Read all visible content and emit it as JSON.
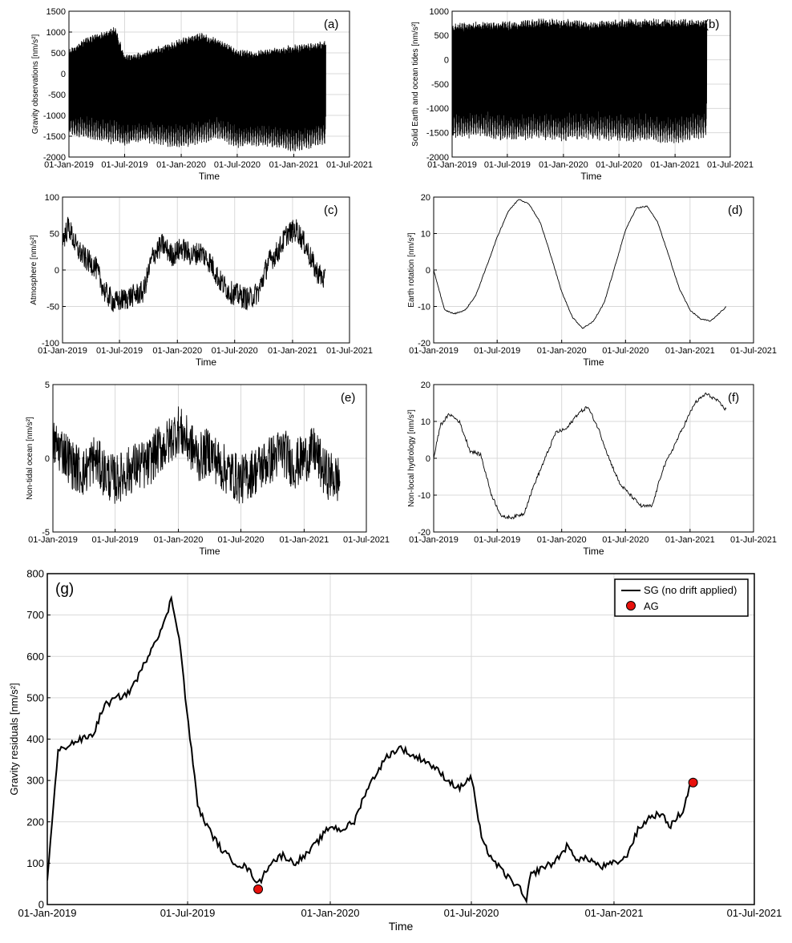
{
  "chart_data": [
    {
      "id": "a",
      "type": "line",
      "panel_label": "(a)",
      "title": "",
      "xlabel": "Time",
      "ylabel": "Gravity observations [nm/s²]",
      "x_ticks": [
        "01-Jan-2019",
        "01-Jul-2019",
        "01-Jan-2020",
        "01-Jul-2020",
        "01-Jan-2021",
        "01-Jul-2021"
      ],
      "xlim": [
        "2019-01-01",
        "2021-07-01"
      ],
      "ylim": [
        -2000,
        1500
      ],
      "y_ticks": [
        -2000,
        -1500,
        -1000,
        -500,
        0,
        500,
        1000,
        1500
      ],
      "grid": true,
      "series": [
        {
          "date": [
            "2019-01-01",
            "2019-03-01",
            "2019-05-01",
            "2019-06-01",
            "2019-07-01",
            "2019-09-01",
            "2019-11-01",
            "2020-01-01",
            "2020-03-01",
            "2020-05-01",
            "2020-07-01",
            "2020-09-01",
            "2020-11-01",
            "2021-01-01",
            "2021-03-01",
            "2021-04-15"
          ],
          "envelope_upper": [
            600,
            900,
            1050,
            1150,
            450,
            550,
            700,
            850,
            1000,
            850,
            600,
            550,
            650,
            700,
            750,
            800
          ],
          "envelope_lower": [
            -1500,
            -1600,
            -1700,
            -1700,
            -1750,
            -1650,
            -1750,
            -1800,
            -1700,
            -1600,
            -1800,
            -1750,
            -1800,
            -1900,
            -1800,
            -1700
          ]
        }
      ]
    },
    {
      "id": "b",
      "type": "line",
      "panel_label": "(b)",
      "title": "",
      "xlabel": "Time",
      "ylabel": "Solid Earth and ocean tides [nm/s²]",
      "x_ticks": [
        "01-Jan-2019",
        "01-Jul-2019",
        "01-Jan-2020",
        "01-Jul-2020",
        "01-Jan-2021",
        "01-Jul-2021"
      ],
      "xlim": [
        "2019-01-01",
        "2021-07-01"
      ],
      "ylim": [
        -2000,
        1000
      ],
      "y_ticks": [
        -2000,
        -1500,
        -1000,
        -500,
        0,
        500,
        1000
      ],
      "grid": true,
      "series": [
        {
          "date": [
            "2019-01-01",
            "2019-04-01",
            "2019-07-01",
            "2019-10-01",
            "2020-01-01",
            "2020-04-01",
            "2020-07-01",
            "2020-10-01",
            "2021-01-01",
            "2021-04-15"
          ],
          "envelope_upper": [
            750,
            800,
            800,
            850,
            850,
            800,
            850,
            850,
            850,
            850
          ],
          "envelope_lower": [
            -1650,
            -1600,
            -1700,
            -1650,
            -1700,
            -1650,
            -1700,
            -1700,
            -1750,
            -1600
          ]
        }
      ]
    },
    {
      "id": "c",
      "type": "line",
      "panel_label": "(c)",
      "title": "",
      "xlabel": "Time",
      "ylabel": "Atmosphere [nm/s²]",
      "x_ticks": [
        "01-Jan-2019",
        "01-Jul-2019",
        "01-Jan-2020",
        "01-Jul-2020",
        "01-Jan-2021",
        "01-Jul-2021"
      ],
      "xlim": [
        "2019-01-01",
        "2021-07-01"
      ],
      "ylim": [
        -100,
        100
      ],
      "y_ticks": [
        -100,
        -50,
        0,
        50,
        100
      ],
      "grid": true,
      "series": [
        {
          "date": [
            "2019-01-01",
            "2019-01-20",
            "2019-02-15",
            "2019-03-15",
            "2019-04-15",
            "2019-05-15",
            "2019-06-15",
            "2019-07-15",
            "2019-08-15",
            "2019-09-15",
            "2019-10-15",
            "2019-11-15",
            "2019-12-15",
            "2020-01-15",
            "2020-02-15",
            "2020-03-15",
            "2020-04-15",
            "2020-05-15",
            "2020-06-15",
            "2020-07-15",
            "2020-08-15",
            "2020-09-15",
            "2020-10-15",
            "2020-11-15",
            "2020-12-15",
            "2021-01-15",
            "2021-02-15",
            "2021-03-15",
            "2021-04-15"
          ],
          "y": [
            40,
            60,
            30,
            15,
            5,
            -30,
            -45,
            -40,
            -35,
            -30,
            20,
            35,
            20,
            30,
            20,
            25,
            10,
            -15,
            -30,
            -35,
            -40,
            -30,
            10,
            25,
            50,
            55,
            30,
            0,
            -15
          ]
        }
      ]
    },
    {
      "id": "d",
      "type": "line",
      "panel_label": "(d)",
      "title": "",
      "xlabel": "Time",
      "ylabel": "Earth rotation [nm/s²]",
      "x_ticks": [
        "01-Jan-2019",
        "01-Jul-2019",
        "01-Jan-2020",
        "01-Jul-2020",
        "01-Jan-2021",
        "01-Jul-2021"
      ],
      "xlim": [
        "2019-01-01",
        "2021-07-01"
      ],
      "ylim": [
        -20,
        20
      ],
      "y_ticks": [
        -20,
        -10,
        0,
        10,
        20
      ],
      "grid": true,
      "series": [
        {
          "date": [
            "2019-01-01",
            "2019-02-01",
            "2019-03-01",
            "2019-04-01",
            "2019-05-01",
            "2019-06-01",
            "2019-07-01",
            "2019-08-01",
            "2019-09-01",
            "2019-10-01",
            "2019-11-01",
            "2019-12-01",
            "2020-01-01",
            "2020-02-01",
            "2020-03-01",
            "2020-04-01",
            "2020-05-01",
            "2020-06-01",
            "2020-07-01",
            "2020-08-01",
            "2020-09-01",
            "2020-10-01",
            "2020-11-01",
            "2020-12-01",
            "2021-01-01",
            "2021-02-01",
            "2021-03-01",
            "2021-04-15"
          ],
          "y": [
            0,
            -11,
            -12,
            -11,
            -7,
            1,
            9,
            16,
            19.5,
            18,
            13,
            4,
            -6,
            -13,
            -16,
            -14,
            -9,
            1,
            11,
            17,
            17.5,
            13,
            4,
            -5,
            -11,
            -13.5,
            -14,
            -10
          ]
        }
      ]
    },
    {
      "id": "e",
      "type": "line",
      "panel_label": "(e)",
      "title": "",
      "xlabel": "Time",
      "ylabel": "Non-tidal ocean [nm/s²]",
      "x_ticks": [
        "01-Jan-2019",
        "01-Jul-2019",
        "01-Jan-2020",
        "01-Jul-2020",
        "01-Jan-2021",
        "01-Jul-2021"
      ],
      "xlim": [
        "2019-01-01",
        "2021-07-01"
      ],
      "ylim": [
        -5,
        5
      ],
      "y_ticks": [
        -5,
        0,
        5
      ],
      "grid": true,
      "series": [
        {
          "date": [
            "2019-01-01",
            "2019-02-01",
            "2019-03-01",
            "2019-04-01",
            "2019-05-01",
            "2019-06-01",
            "2019-07-01",
            "2019-08-01",
            "2019-09-01",
            "2019-10-01",
            "2019-11-01",
            "2019-12-01",
            "2020-01-01",
            "2020-02-01",
            "2020-03-01",
            "2020-04-01",
            "2020-05-01",
            "2020-06-01",
            "2020-07-01",
            "2020-08-01",
            "2020-09-01",
            "2020-10-01",
            "2020-11-01",
            "2020-12-01",
            "2021-01-01",
            "2021-02-01",
            "2021-03-01",
            "2021-04-15"
          ],
          "y": [
            1,
            0.5,
            -0.5,
            -1,
            0,
            -1,
            -1.5,
            -1,
            -0.5,
            -0.5,
            0.5,
            1,
            2,
            1,
            0,
            0.5,
            -0.5,
            -1,
            -1.5,
            -1,
            -0.5,
            0,
            0.5,
            -0.5,
            0,
            0.5,
            -1,
            -1.5
          ]
        }
      ]
    },
    {
      "id": "f",
      "type": "line",
      "panel_label": "(f)",
      "title": "",
      "xlabel": "Time",
      "ylabel": "Non-local hydrology [nm/s²]",
      "x_ticks": [
        "01-Jan-2019",
        "01-Jul-2019",
        "01-Jan-2020",
        "01-Jul-2020",
        "01-Jan-2021",
        "01-Jul-2021"
      ],
      "xlim": [
        "2019-01-01",
        "2021-07-01"
      ],
      "ylim": [
        -20,
        20
      ],
      "y_ticks": [
        -20,
        -10,
        0,
        10,
        20
      ],
      "grid": true,
      "series": [
        {
          "date": [
            "2019-01-01",
            "2019-01-20",
            "2019-02-15",
            "2019-03-15",
            "2019-04-15",
            "2019-05-15",
            "2019-06-15",
            "2019-07-15",
            "2019-08-15",
            "2019-09-15",
            "2019-10-15",
            "2019-11-15",
            "2019-12-15",
            "2020-01-15",
            "2020-02-15",
            "2020-03-15",
            "2020-04-15",
            "2020-05-15",
            "2020-06-15",
            "2020-07-15",
            "2020-08-15",
            "2020-09-15",
            "2020-10-15",
            "2020-11-15",
            "2020-12-15",
            "2021-01-15",
            "2021-02-15",
            "2021-03-15",
            "2021-04-15"
          ],
          "y": [
            0,
            9,
            12,
            10,
            2,
            1,
            -10,
            -16,
            -16,
            -15,
            -7,
            0,
            7,
            8,
            12,
            14,
            8,
            0,
            -7,
            -10,
            -13,
            -13,
            -3,
            3,
            9,
            15,
            17.5,
            16,
            13
          ]
        }
      ]
    },
    {
      "id": "g",
      "type": "line",
      "panel_label": "(g)",
      "title": "",
      "xlabel": "Time",
      "ylabel": "Gravity residuals [nm/s²]",
      "x_ticks": [
        "01-Jan-2019",
        "01-Jul-2019",
        "01-Jan-2020",
        "01-Jul-2020",
        "01-Jan-2021",
        "01-Jul-2021"
      ],
      "xlim": [
        "2019-01-01",
        "2021-07-01"
      ],
      "ylim": [
        0,
        800
      ],
      "y_ticks": [
        0,
        100,
        200,
        300,
        400,
        500,
        600,
        700,
        800
      ],
      "grid": true,
      "legend_placement": "top-right",
      "series": [
        {
          "name": "SG (no drift applied)",
          "date": [
            "2019-01-01",
            "2019-01-07",
            "2019-01-15",
            "2019-02-01",
            "2019-02-15",
            "2019-03-01",
            "2019-03-15",
            "2019-04-01",
            "2019-04-15",
            "2019-05-01",
            "2019-05-15",
            "2019-06-01",
            "2019-06-10",
            "2019-06-20",
            "2019-07-01",
            "2019-07-15",
            "2019-08-01",
            "2019-08-15",
            "2019-09-01",
            "2019-09-15",
            "2019-10-01",
            "2019-10-15",
            "2019-11-01",
            "2019-11-15",
            "2019-12-01",
            "2019-12-15",
            "2020-01-01",
            "2020-01-15",
            "2020-02-01",
            "2020-02-15",
            "2020-03-01",
            "2020-03-15",
            "2020-04-01",
            "2020-04-15",
            "2020-05-01",
            "2020-05-15",
            "2020-06-01",
            "2020-06-15",
            "2020-07-01",
            "2020-07-15",
            "2020-08-01",
            "2020-08-15",
            "2020-09-01",
            "2020-09-10",
            "2020-09-15",
            "2020-10-01",
            "2020-10-15",
            "2020-11-01",
            "2020-11-15",
            "2020-12-01",
            "2020-12-15",
            "2021-01-01",
            "2021-01-15",
            "2021-02-01",
            "2021-02-15",
            "2021-03-01",
            "2021-03-15",
            "2021-04-01",
            "2021-04-10"
          ],
          "y": [
            60,
            200,
            370,
            390,
            400,
            410,
            480,
            500,
            510,
            560,
            620,
            680,
            740,
            650,
            450,
            230,
            170,
            130,
            100,
            90,
            50,
            100,
            120,
            100,
            120,
            150,
            190,
            180,
            200,
            270,
            320,
            360,
            380,
            360,
            350,
            330,
            300,
            280,
            310,
            150,
            100,
            70,
            40,
            5,
            70,
            90,
            100,
            140,
            110,
            110,
            90,
            100,
            110,
            180,
            210,
            220,
            190,
            230,
            300
          ]
        },
        {
          "name": "AG",
          "date": [
            "2019-09-30",
            "2021-04-13"
          ],
          "y": [
            37,
            295
          ]
        }
      ]
    }
  ],
  "colors": {
    "line": "#000000",
    "ag_marker": "#e8110c",
    "grid": "#d9d9d9"
  }
}
